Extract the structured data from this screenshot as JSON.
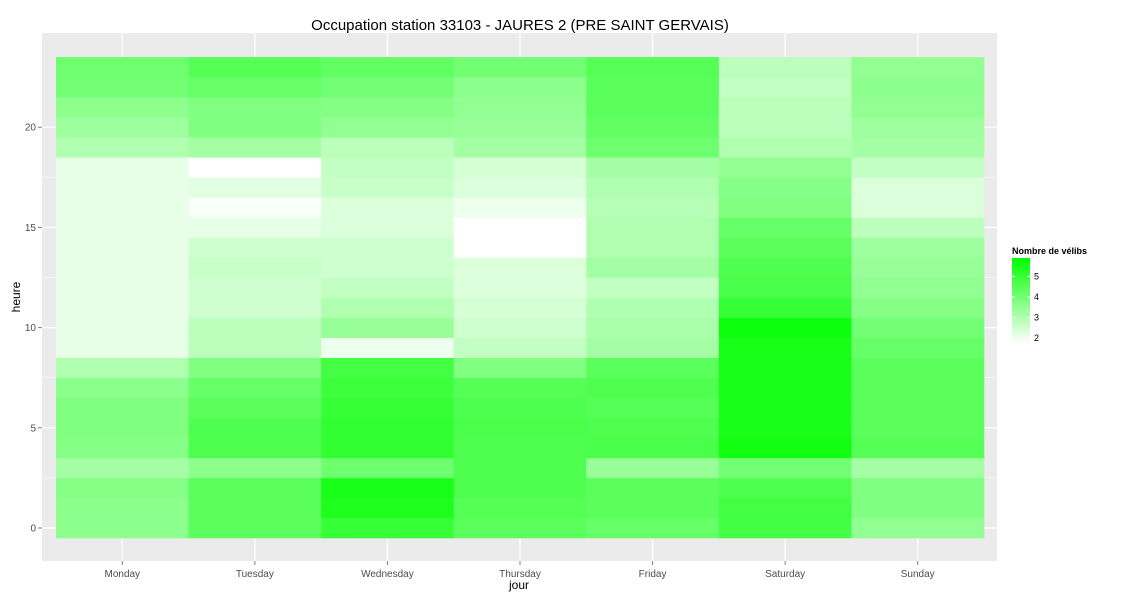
{
  "chart_data": {
    "type": "heatmap",
    "title": "Occupation station 33103 - JAURES 2 (PRE SAINT GERVAIS)",
    "xlabel": "jour",
    "ylabel": "heure",
    "x_categories": [
      "Monday",
      "Tuesday",
      "Wednesday",
      "Thursday",
      "Friday",
      "Saturday",
      "Sunday"
    ],
    "hours": [
      0,
      1,
      2,
      3,
      4,
      5,
      6,
      7,
      8,
      9,
      10,
      11,
      12,
      13,
      14,
      15,
      16,
      17,
      18,
      19,
      20,
      21,
      22,
      23
    ],
    "y_ticks": [
      0,
      5,
      10,
      15,
      20
    ],
    "ylim": [
      -0.5,
      23.5
    ],
    "grid": true,
    "color_scale": {
      "low_color": "#ffffff",
      "high_color": "#00ff00",
      "min": 1.7,
      "max": 5.9
    },
    "legend": {
      "title": "Nombre de vélibs",
      "ticks": [
        2,
        3,
        4,
        5
      ],
      "position": "right"
    },
    "values": [
      [
        3.6,
        4.4,
        5.0,
        4.4,
        4.2,
        4.8,
        3.5
      ],
      [
        3.6,
        4.4,
        5.4,
        4.5,
        4.4,
        4.8,
        3.8
      ],
      [
        3.7,
        4.4,
        5.5,
        4.6,
        4.4,
        4.6,
        3.8
      ],
      [
        3.2,
        3.6,
        4.1,
        4.6,
        3.4,
        4.0,
        3.2
      ],
      [
        3.7,
        4.6,
        5.1,
        4.6,
        4.7,
        5.6,
        4.5
      ],
      [
        3.8,
        4.6,
        5.1,
        4.7,
        4.6,
        5.5,
        4.4
      ],
      [
        3.8,
        4.4,
        5.0,
        4.6,
        4.5,
        5.5,
        4.4
      ],
      [
        3.6,
        4.2,
        4.9,
        4.5,
        4.6,
        5.5,
        4.4
      ],
      [
        3.0,
        3.8,
        4.8,
        3.8,
        4.4,
        5.5,
        4.4
      ],
      [
        2.1,
        2.8,
        2.0,
        2.7,
        3.2,
        5.5,
        4.2
      ],
      [
        2.1,
        2.8,
        3.4,
        2.5,
        3.1,
        5.7,
        4.0
      ],
      [
        2.1,
        2.5,
        3.0,
        2.4,
        3.0,
        5.0,
        3.7
      ],
      [
        2.1,
        2.5,
        2.7,
        2.3,
        2.7,
        4.7,
        3.5
      ],
      [
        2.1,
        2.6,
        2.5,
        2.3,
        3.2,
        4.6,
        3.4
      ],
      [
        2.1,
        2.5,
        2.5,
        1.7,
        3.0,
        4.4,
        3.3
      ],
      [
        2.1,
        2.1,
        2.3,
        1.7,
        3.0,
        4.2,
        2.8
      ],
      [
        2.1,
        1.8,
        2.3,
        2.0,
        2.9,
        3.8,
        2.3
      ],
      [
        2.1,
        2.2,
        2.6,
        2.3,
        3.0,
        3.7,
        2.3
      ],
      [
        2.1,
        1.7,
        2.7,
        2.4,
        3.2,
        3.5,
        2.7
      ],
      [
        3.0,
        3.2,
        2.8,
        3.2,
        4.1,
        3.0,
        3.2
      ],
      [
        3.3,
        3.8,
        3.5,
        3.4,
        4.3,
        2.8,
        3.3
      ],
      [
        3.6,
        3.8,
        3.7,
        3.5,
        4.4,
        2.8,
        3.5
      ],
      [
        4.0,
        4.2,
        4.0,
        3.6,
        4.4,
        2.7,
        3.6
      ],
      [
        4.1,
        4.5,
        4.3,
        4.0,
        4.5,
        2.8,
        3.5
      ]
    ]
  }
}
